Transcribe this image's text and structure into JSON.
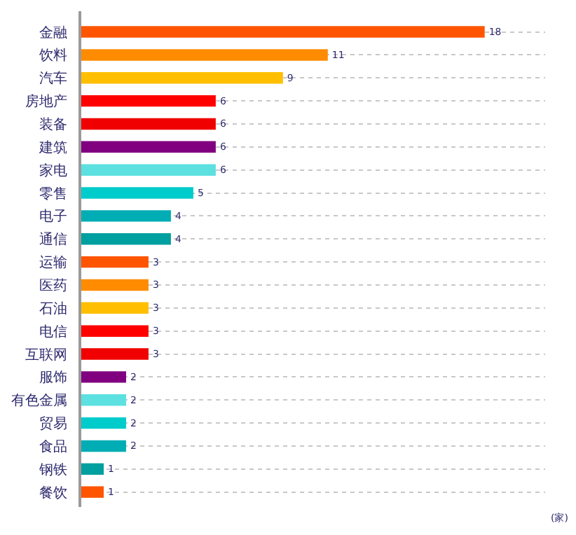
{
  "chart_data": {
    "type": "bar",
    "orientation": "horizontal",
    "categories": [
      "金融",
      "饮料",
      "汽车",
      "房地产",
      "装备",
      "建筑",
      "家电",
      "零售",
      "电子",
      "通信",
      "运输",
      "医药",
      "石油",
      "电信",
      "互联网",
      "服饰",
      "有色金属",
      "贸易",
      "食品",
      "钢铁",
      "餐饮"
    ],
    "values": [
      18,
      11,
      9,
      6,
      6,
      6,
      6,
      5,
      4,
      4,
      3,
      3,
      3,
      3,
      3,
      2,
      2,
      2,
      2,
      1,
      1
    ],
    "colors": [
      "#ff5500",
      "#ff8c00",
      "#ffbf00",
      "#ff0000",
      "#f00000",
      "#800080",
      "#5ce0e0",
      "#00cccc",
      "#00adb5",
      "#009fa0",
      "#ff5500",
      "#ff8c00",
      "#ffbf00",
      "#ff0000",
      "#f00000",
      "#800080",
      "#5ce0e0",
      "#00cccc",
      "#00adb5",
      "#009fa0",
      "#ff5500"
    ],
    "data_labels": true,
    "tick_labels": "y",
    "grid": "y",
    "annotations": [
      "(家)"
    ]
  }
}
